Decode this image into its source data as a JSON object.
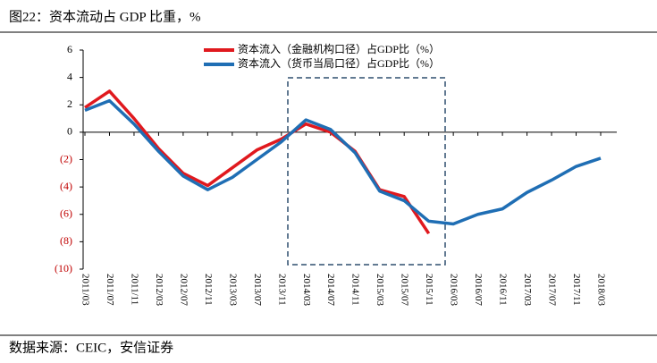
{
  "chart_data": {
    "type": "line",
    "title": "图22：资本流动占 GDP 比重，%",
    "source": "数据来源：CEIC，安信证券",
    "categories": [
      "2011/03",
      "2011/07",
      "2011/11",
      "2012/03",
      "2012/07",
      "2012/11",
      "2013/03",
      "2013/07",
      "2013/11",
      "2014/03",
      "2014/07",
      "2014/11",
      "2015/03",
      "2015/07",
      "2015/11",
      "2016/03",
      "2016/07",
      "2016/11",
      "2017/03",
      "2017/07",
      "2017/11",
      "2018/03"
    ],
    "series": [
      {
        "name": "资本流入（金融机构口径）占GDP比（%）",
        "color": "#e0191e",
        "values": [
          1.8,
          3.0,
          1.0,
          -1.2,
          -3.0,
          -3.9,
          -2.6,
          -1.3,
          -0.5,
          0.6,
          0.0,
          -1.4,
          -4.2,
          -4.7,
          -7.4,
          null,
          null,
          null,
          null,
          null,
          null,
          null
        ]
      },
      {
        "name": "资本流入（货币当局口径）占GDP比（%）",
        "color": "#1f6eb4",
        "values": [
          1.6,
          2.3,
          0.6,
          -1.4,
          -3.2,
          -4.2,
          -3.3,
          -2.0,
          -0.7,
          0.9,
          0.2,
          -1.5,
          -4.3,
          -5.0,
          -6.5,
          -6.7,
          -6.0,
          -5.6,
          -4.4,
          -3.5,
          -2.5,
          -1.9
        ]
      }
    ],
    "ylim": [
      -10,
      6
    ],
    "yticks": [
      6,
      4,
      2,
      0,
      {
        "value": -2,
        "label": "(2)"
      },
      {
        "value": -4,
        "label": "(4)"
      },
      {
        "value": -6,
        "label": "(6)"
      },
      {
        "value": -8,
        "label": "(8)"
      },
      {
        "value": -10,
        "label": "(10)"
      }
    ],
    "legend": "top"
  }
}
